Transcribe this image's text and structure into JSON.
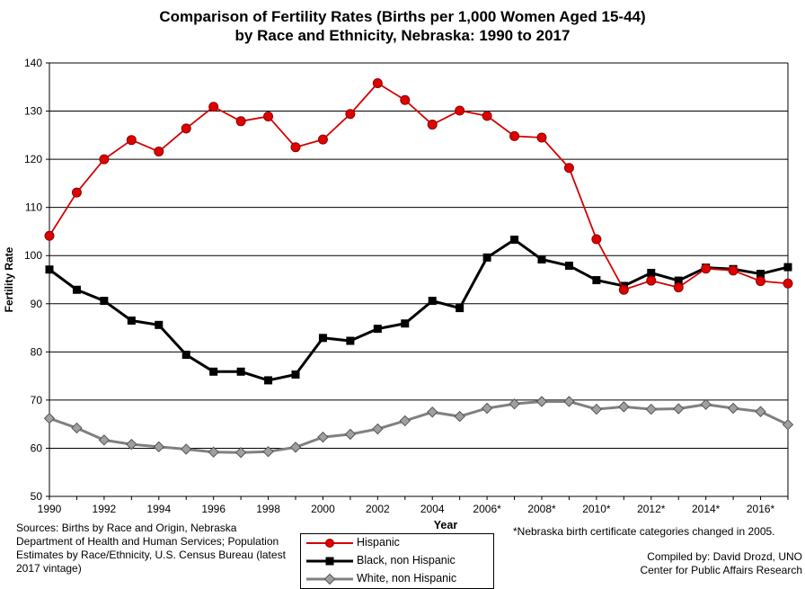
{
  "title_line1": "Comparison of Fertility Rates (Births per 1,000 Women Aged 15-44)",
  "title_line2": "by Race and Ethnicity, Nebraska: 1990 to 2017",
  "sources": "Sources: Births by Race and Origin, Nebraska Department of Health and Human Services; Population Estimates by Race/Ethnicity, U.S. Census Bureau (latest 2017 vintage)",
  "footnote": "*Nebraska birth certificate categories changed in 2005.",
  "compiled_by": "Compiled by: David Drozd, UNO",
  "organization": "Center for Public Affairs Research",
  "colors": {
    "hispanic": "#d40000",
    "black": "#000000",
    "white": "#808080",
    "white_marker": "#a0a0a0"
  },
  "chart_data": {
    "type": "line",
    "xlabel": "Year",
    "ylabel": "Fertility Rate",
    "ylim": [
      50,
      140
    ],
    "yticks": [
      50,
      60,
      70,
      80,
      90,
      100,
      110,
      120,
      130,
      140
    ],
    "xlim": [
      1990,
      2017
    ],
    "x_tick_labels": [
      "1990",
      "1992",
      "1994",
      "1996",
      "1998",
      "2000",
      "2002",
      "2004",
      "2006*",
      "2008*",
      "2010*",
      "2012*",
      "2014*",
      "2016*"
    ],
    "grid": "horizontal",
    "legend_position": "bottom-center",
    "x": [
      1990,
      1991,
      1992,
      1993,
      1994,
      1995,
      1996,
      1997,
      1998,
      1999,
      2000,
      2001,
      2002,
      2003,
      2004,
      2005,
      2006,
      2007,
      2008,
      2009,
      2010,
      2011,
      2012,
      2013,
      2014,
      2015,
      2016,
      2017
    ],
    "series": [
      {
        "name": "Hispanic",
        "marker": "circle",
        "values": [
          104.1,
          113.1,
          120.0,
          124.0,
          121.6,
          126.4,
          130.9,
          127.9,
          128.9,
          122.5,
          124.1,
          129.4,
          135.8,
          132.3,
          127.2,
          130.1,
          129.0,
          124.8,
          124.5,
          118.2,
          103.4,
          92.9,
          94.8,
          93.4,
          97.3,
          96.9,
          94.7,
          94.2
        ]
      },
      {
        "name": "Black, non Hispanic",
        "marker": "square",
        "values": [
          97.1,
          92.9,
          90.6,
          86.5,
          85.6,
          79.4,
          75.9,
          75.9,
          74.1,
          75.3,
          82.9,
          82.3,
          84.8,
          85.9,
          90.6,
          89.1,
          99.6,
          103.3,
          99.2,
          97.9,
          94.9,
          93.7,
          96.4,
          94.8,
          97.5,
          97.2,
          96.2,
          97.6
        ]
      },
      {
        "name": "White, non Hispanic",
        "marker": "diamond",
        "values": [
          66.2,
          64.2,
          61.7,
          60.8,
          60.3,
          59.8,
          59.2,
          59.1,
          59.3,
          60.2,
          62.3,
          62.9,
          64.0,
          65.7,
          67.5,
          66.6,
          68.3,
          69.2,
          69.7,
          69.7,
          68.1,
          68.6,
          68.1,
          68.2,
          69.1,
          68.3,
          67.6,
          64.9
        ]
      }
    ]
  }
}
